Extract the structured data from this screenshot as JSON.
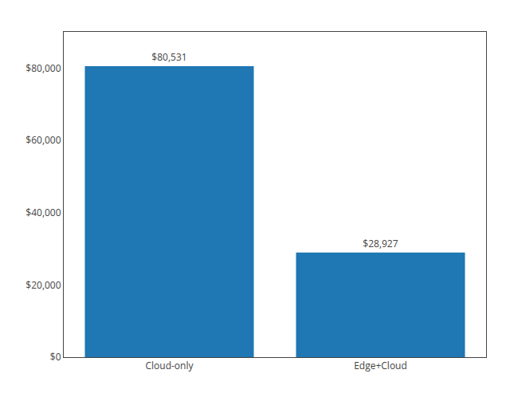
{
  "chart_data": {
    "type": "bar",
    "categories": [
      "Cloud-only",
      "Edge+Cloud"
    ],
    "values": [
      80531,
      28927
    ],
    "value_labels": [
      "$80,531",
      "$28,927"
    ],
    "data_labels": true,
    "ylim": [
      0,
      90000
    ],
    "yticks": [
      {
        "value": 0,
        "label": "$0"
      },
      {
        "value": 20000,
        "label": "$20,000"
      },
      {
        "value": 40000,
        "label": "$40,000"
      },
      {
        "value": 60000,
        "label": "$60,000"
      },
      {
        "value": 80000,
        "label": "$80,000"
      }
    ],
    "grid": false
  }
}
